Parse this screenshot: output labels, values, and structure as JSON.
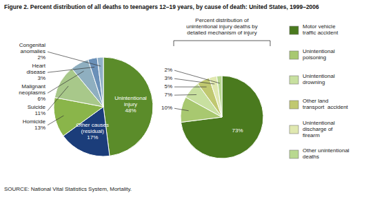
{
  "chart_data": [
    {
      "type": "pie",
      "title": "Figure 2. Percent distribution of all deaths to teenagers 12–19 years, by cause of death: United States, 1999–2006",
      "categories": [
        "Unintentional\ninjury",
        "Other causes\n(residual)",
        "Homicide",
        "Suicide",
        "Malignant\nneoplasms",
        "Heart\ndisease",
        "Congenital\nanomalies"
      ],
      "values": [
        48,
        17,
        13,
        11,
        6,
        3,
        2
      ],
      "value_labels": [
        "48%",
        "17%",
        "13%",
        "11%",
        "6%",
        "3%",
        "2%"
      ],
      "colors": [
        "#5b8c2a",
        "#1b3d7a",
        "#8ab54a",
        "#a8c88a",
        "#8fafc0",
        "#6a90b8",
        "#90b0c8"
      ],
      "data_labels": true,
      "annotations": [
        "SOURCE: National Vital Statistics System, Mortality."
      ]
    },
    {
      "type": "pie",
      "categories": [
        "Motor vehicle\ntraffic accident",
        "Unintentional\npoisoning",
        "Unintentional\ndrowning",
        "Other land\ntransport  accident",
        "Unintentional\ndischarge of\nfirearm",
        "Other unintentional\ndeaths"
      ],
      "values": [
        73,
        10,
        7,
        5,
        3,
        2
      ],
      "value_labels": [
        "73%",
        "10%",
        "7%",
        "5%",
        "3%",
        "2%"
      ],
      "colors": [
        "#4a7a1e",
        "#a8c870",
        "#c8e0a0",
        "#c0c870",
        "#e0e8b0",
        "#b8d890"
      ],
      "data_labels": true,
      "legend": "right",
      "annotations": [
        "Percent distribution of\nunintentional injury deaths by\ndetailed mechanism of injury"
      ]
    }
  ]
}
